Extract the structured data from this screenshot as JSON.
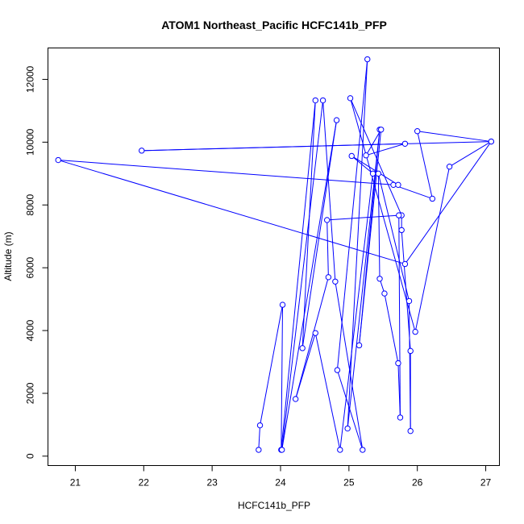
{
  "chart_data": {
    "type": "line",
    "title": "ATOM1 Northeast_Pacific HCFC141b_PFP",
    "xlabel": "HCFC141b_PFP",
    "ylabel": "Altitude (m)",
    "xlim": [
      20.6,
      27.2
    ],
    "ylim": [
      -300,
      13000
    ],
    "x_ticks": [
      21,
      22,
      23,
      24,
      25,
      26,
      27
    ],
    "y_ticks": [
      0,
      2000,
      4000,
      6000,
      8000,
      10000,
      12000
    ],
    "grid": false,
    "series_color": "#0000ff",
    "series": [
      {
        "marker": "open-circle",
        "points": [
          [
            23.68,
            200
          ],
          [
            23.7,
            980
          ],
          [
            24.03,
            4820
          ],
          [
            24.01,
            200
          ],
          [
            24.51,
            11330
          ],
          [
            24.32,
            3440
          ],
          [
            24.82,
            10700
          ],
          [
            24.02,
            200
          ],
          [
            24.62,
            11330
          ],
          [
            24.8,
            5560
          ],
          [
            25.2,
            200
          ],
          [
            24.83,
            2740
          ],
          [
            25.27,
            12640
          ],
          [
            24.98,
            880
          ],
          [
            25.45,
            10400
          ],
          [
            25.15,
            3530
          ],
          [
            25.47,
            10400
          ],
          [
            25.25,
            9580
          ],
          [
            25.82,
            9950
          ],
          [
            21.97,
            9730
          ],
          [
            27.08,
            10020
          ],
          [
            25.82,
            6120
          ],
          [
            20.75,
            9430
          ],
          [
            25.65,
            8640
          ],
          [
            26.22,
            8200
          ],
          [
            26.0,
            10350
          ],
          [
            27.08,
            10020
          ],
          [
            26.47,
            9220
          ],
          [
            25.97,
            3960
          ],
          [
            25.02,
            11400
          ],
          [
            25.77,
            7670
          ],
          [
            25.77,
            7200
          ],
          [
            25.9,
            3350
          ],
          [
            25.9,
            800
          ],
          [
            25.88,
            4940
          ],
          [
            25.43,
            9000
          ],
          [
            25.45,
            5650
          ],
          [
            25.52,
            5180
          ],
          [
            25.72,
            2960
          ],
          [
            25.75,
            1230
          ],
          [
            25.73,
            7670
          ],
          [
            24.68,
            7520
          ],
          [
            24.7,
            5700
          ],
          [
            24.22,
            1820
          ],
          [
            24.51,
            3920
          ],
          [
            24.87,
            200
          ],
          [
            25.35,
            9000
          ],
          [
            25.04,
            9560
          ],
          [
            25.72,
            8640
          ]
        ]
      }
    ]
  }
}
